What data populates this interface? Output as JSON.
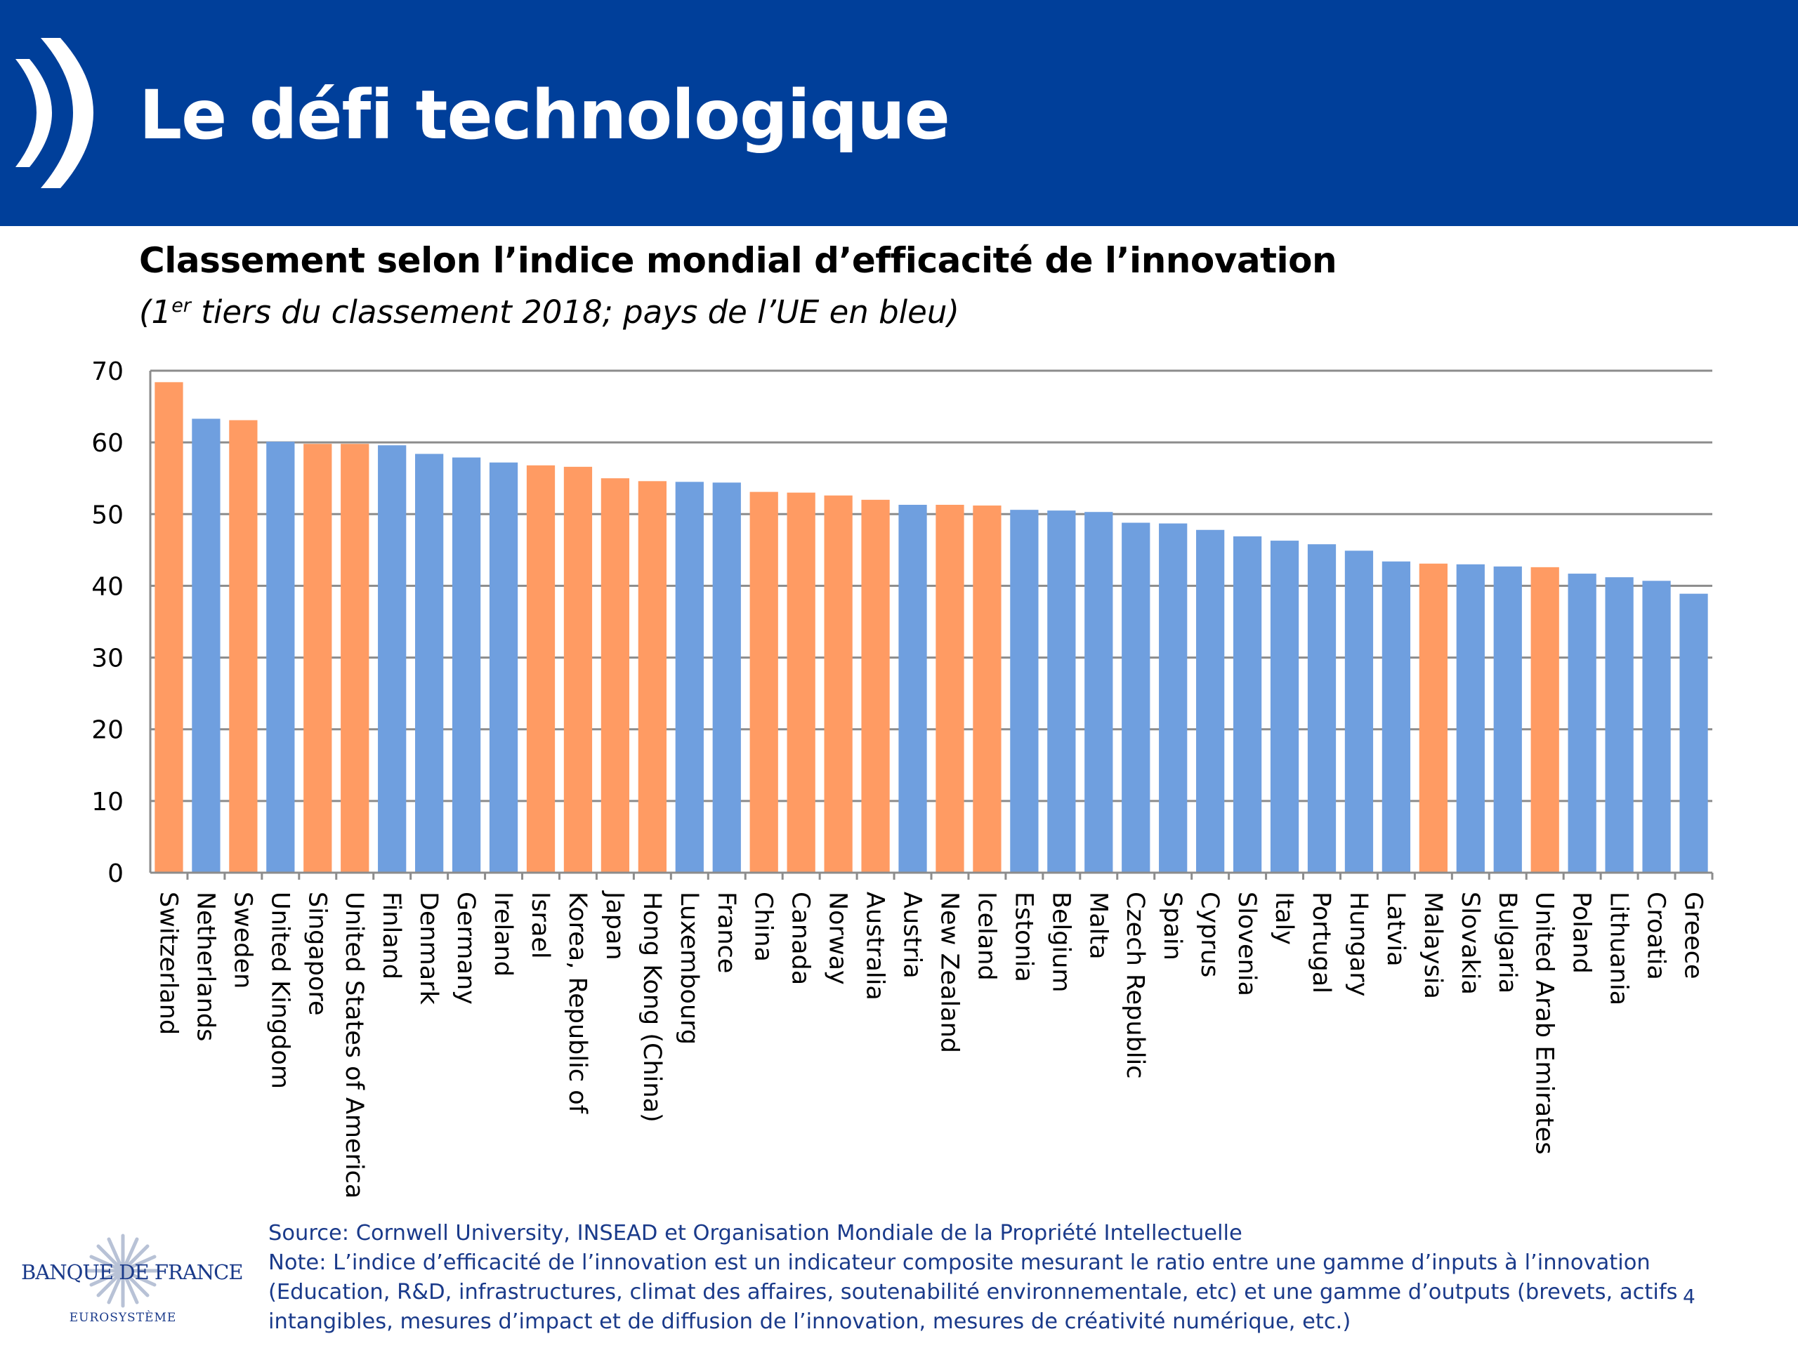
{
  "slide": {
    "title": "Le défi technologique",
    "page_number": "4"
  },
  "footer": {
    "source": "Source: Cornwell University, INSEAD et Organisation Mondiale de la Propriété Intellectuelle",
    "note_lines": [
      "Note: L’indice d’efficacité de l’innovation est un indicateur composite mesurant le ratio entre une gamme d’inputs à l’innovation",
      "(Education, R&D, infrastructures, climat des affaires, soutenabilité environnementale,  etc) et une gamme d’outputs (brevets, actifs",
      "intangibles, mesures d’impact et de diffusion de l’innovation, mesures de créativité numérique, etc.)"
    ]
  },
  "logo": {
    "name": "BANQUE DE FRANCE",
    "sub": "EUROSYSTÈME",
    "icon": "star-burst-icon"
  },
  "colors": {
    "header": "#003F9A",
    "eu": "#6F9FDF",
    "non_eu": "#FF9B63",
    "grid": "#8C8C8C",
    "text_blue": "#1A3A8A"
  },
  "chart_data": {
    "type": "bar",
    "title": "Classement selon l’indice mondial d’efficacité de l’innovation",
    "subtitle_parts": [
      "(1",
      "er",
      " tiers du classement 2018; pays de l’UE en bleu)"
    ],
    "xlabel": "",
    "ylabel": "",
    "ylim": [
      0,
      70
    ],
    "yticks": [
      "0",
      "10",
      "20",
      "30",
      "40",
      "50",
      "60",
      "70"
    ],
    "grid": true,
    "categories": [
      "Switzerland",
      "Netherlands",
      "Sweden",
      "United Kingdom",
      "Singapore",
      "United States of America",
      "Finland",
      "Denmark",
      "Germany",
      "Ireland",
      "Israel",
      "Korea, Republic of",
      "Japan",
      "Hong Kong (China)",
      "Luxembourg",
      "France",
      "China",
      "Canada",
      "Norway",
      "Australia",
      "Austria",
      "New Zealand",
      "Iceland",
      "Estonia",
      "Belgium",
      "Malta",
      "Czech Republic",
      "Spain",
      "Cyprus",
      "Slovenia",
      "Italy",
      "Portugal",
      "Hungary",
      "Latvia",
      "Malaysia",
      "Slovakia",
      "Bulgaria",
      "United Arab Emirates",
      "Poland",
      "Lithuania",
      "Croatia",
      "Greece"
    ],
    "values": [
      68.4,
      63.3,
      63.1,
      60.1,
      59.8,
      59.8,
      59.6,
      58.4,
      57.9,
      57.2,
      56.8,
      56.6,
      55.0,
      54.6,
      54.5,
      54.4,
      53.1,
      53.0,
      52.6,
      52.0,
      51.3,
      51.3,
      51.2,
      50.6,
      50.5,
      50.3,
      48.8,
      48.7,
      47.8,
      46.9,
      46.3,
      45.8,
      44.9,
      43.4,
      43.1,
      43.0,
      42.7,
      42.6,
      41.7,
      41.2,
      40.7,
      38.9
    ],
    "eu_member": [
      false,
      true,
      false,
      true,
      false,
      false,
      true,
      true,
      true,
      true,
      false,
      false,
      false,
      false,
      true,
      true,
      false,
      false,
      false,
      false,
      true,
      false,
      false,
      true,
      true,
      true,
      true,
      true,
      true,
      true,
      true,
      true,
      true,
      true,
      false,
      true,
      true,
      false,
      true,
      true,
      true,
      true
    ]
  }
}
